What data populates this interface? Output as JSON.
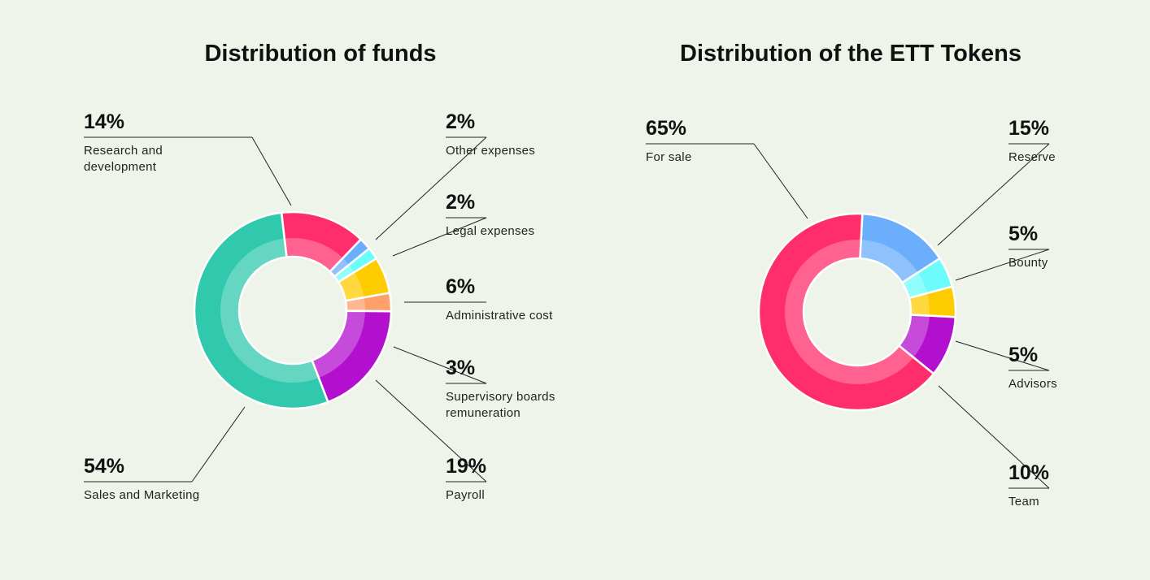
{
  "chart_data": [
    {
      "type": "pie",
      "title": "Distribution of funds",
      "categories": [
        "Research and development",
        "Other expenses",
        "Legal expenses",
        "Administrative cost",
        "Supervisory boards remuneration",
        "Payroll",
        "Sales and Marketing"
      ],
      "values": [
        14,
        2,
        2,
        6,
        3,
        19,
        54
      ],
      "value_labels": [
        "14%",
        "2%",
        "2%",
        "6%",
        "3%",
        "19%",
        "54%"
      ],
      "colors": [
        "#ff2d6b",
        "#6aaefc",
        "#6dfcfc",
        "#ffcc00",
        "#ff9f6a",
        "#b30fcf",
        "#30c9ae"
      ]
    },
    {
      "type": "pie",
      "title": "Distribution of the ETT Tokens",
      "categories": [
        "Reserve",
        "Bounty",
        "Advisors",
        "Team",
        "For sale"
      ],
      "values": [
        15,
        5,
        5,
        10,
        65
      ],
      "value_labels": [
        "15%",
        "5%",
        "5%",
        "10%",
        "65%"
      ],
      "colors": [
        "#6aaefc",
        "#6dfcfc",
        "#ffcc00",
        "#b30fcf",
        "#ff2d6b"
      ]
    }
  ]
}
